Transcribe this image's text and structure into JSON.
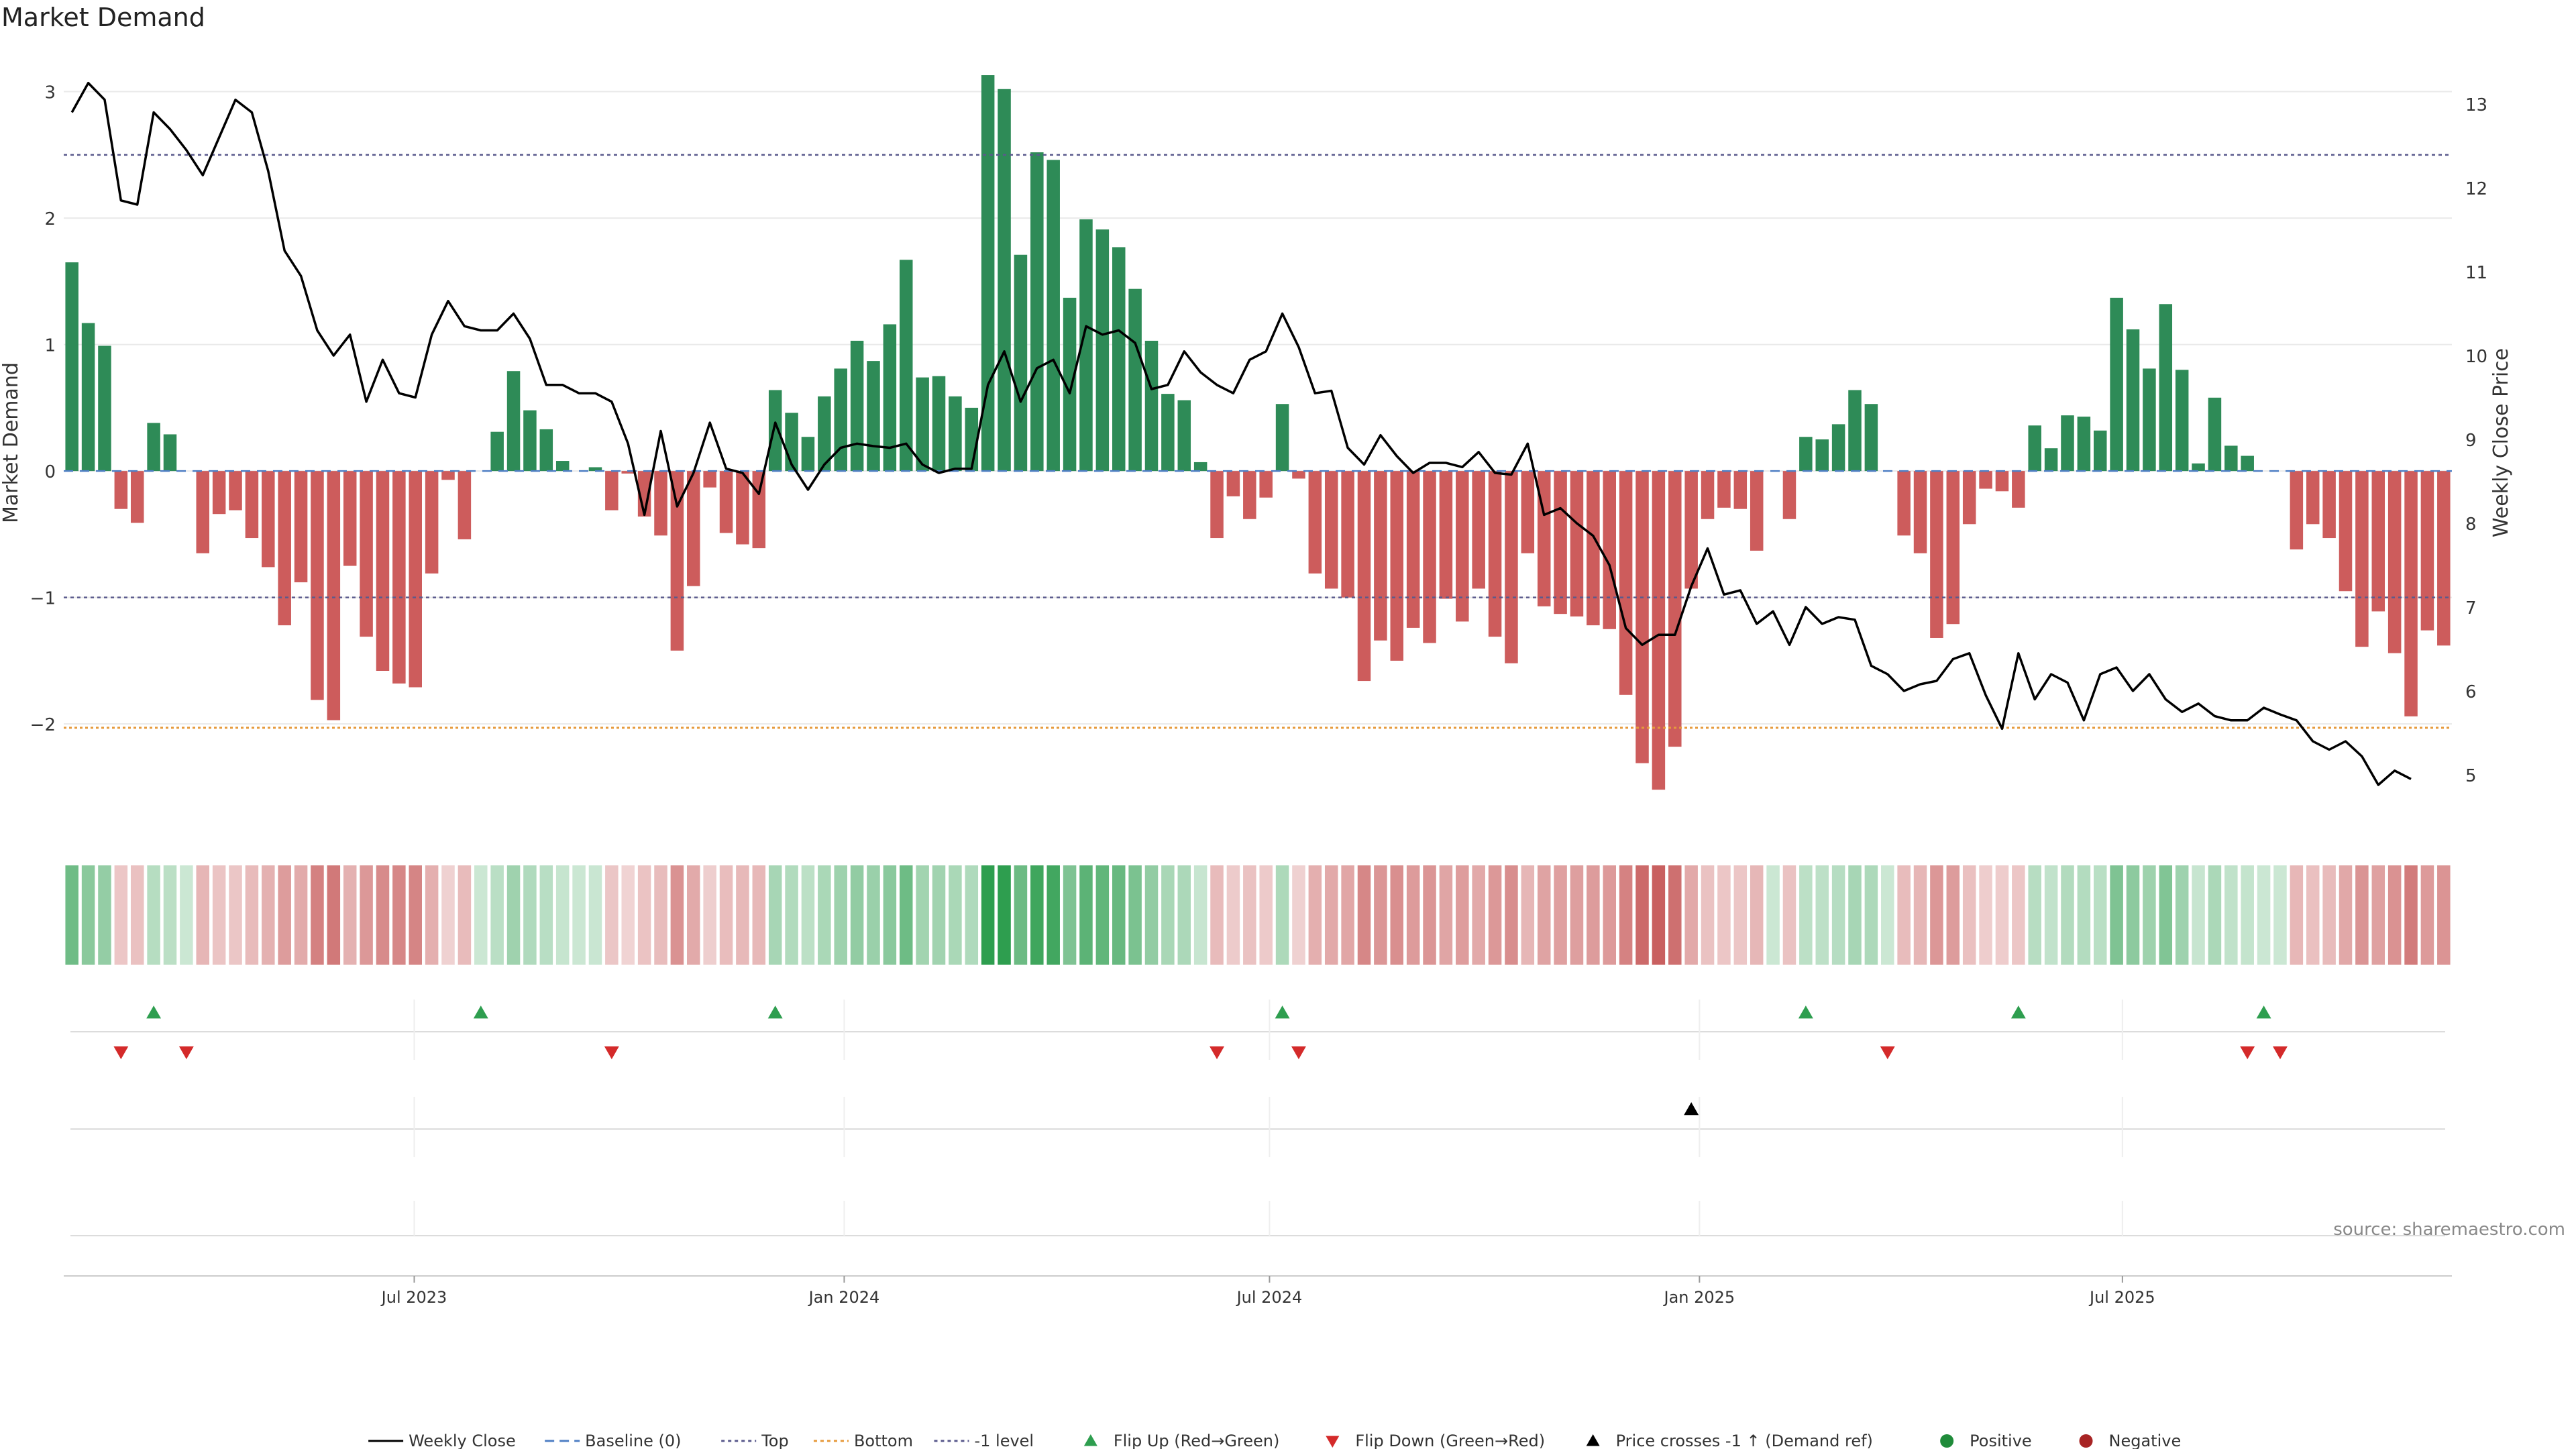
{
  "title": "Market Demand",
  "source": "source: sharemaestro.com",
  "colors": {
    "positive": "#2e8b57",
    "negative": "#cd5c5c",
    "price": "#000000",
    "top_line": "#5a5a8c",
    "bottom_line": "#e69a3c",
    "minus1_line": "#5a5a8c",
    "flip_up": "#2e9e4f",
    "flip_down": "#d42a2a",
    "cross": "#000000"
  },
  "chart_data": {
    "type": "bar",
    "title": "Market Demand",
    "ylabel": "Market Demand",
    "y2label": "Weekly Close Price",
    "ylim": [
      -2.8,
      3.3
    ],
    "y2lim": [
      4.4,
      13.6
    ],
    "yticks": [
      "−2",
      "−1",
      "0",
      "1",
      "2",
      "3"
    ],
    "y2ticks": [
      "5",
      "6",
      "7",
      "8",
      "9",
      "10",
      "11",
      "12",
      "13"
    ],
    "x_start": "2023-02-01",
    "week_days": 7,
    "xticks": [
      {
        "label": "Jul 2023",
        "date": "2023-07-01"
      },
      {
        "label": "Jan 2024",
        "date": "2024-01-01"
      },
      {
        "label": "Jul 2024",
        "date": "2024-07-01"
      },
      {
        "label": "Jan 2025",
        "date": "2025-01-01"
      },
      {
        "label": "Jul 2025",
        "date": "2025-07-01"
      }
    ],
    "levels": {
      "top": 2.5,
      "bottom": -2.03,
      "minus1": -1.0,
      "baseline": 0
    },
    "demand": [
      1.65,
      1.17,
      0.99,
      -0.3,
      -0.41,
      0.38,
      0.29,
      0.0,
      -0.65,
      -0.34,
      -0.31,
      -0.53,
      -0.76,
      -1.22,
      -0.88,
      -1.81,
      -1.97,
      -0.75,
      -1.31,
      -1.58,
      -1.68,
      -1.71,
      -0.81,
      -0.07,
      -0.54,
      0.0,
      0.31,
      0.79,
      0.48,
      0.33,
      0.08,
      0.0,
      0.03,
      -0.31,
      -0.02,
      -0.36,
      -0.51,
      -1.42,
      -0.91,
      -0.13,
      -0.49,
      -0.58,
      -0.61,
      0.64,
      0.46,
      0.27,
      0.59,
      0.81,
      1.03,
      0.87,
      1.16,
      1.67,
      0.74,
      0.75,
      0.59,
      0.5,
      3.13,
      3.02,
      1.71,
      2.52,
      2.46,
      1.37,
      1.99,
      1.91,
      1.77,
      1.44,
      1.03,
      0.61,
      0.56,
      0.07,
      -0.53,
      -0.2,
      -0.38,
      -0.21,
      0.53,
      -0.06,
      -0.81,
      -0.93,
      -1.0,
      -1.66,
      -1.34,
      -1.5,
      -1.24,
      -1.36,
      -1.01,
      -1.19,
      -0.93,
      -1.31,
      -1.52,
      -0.65,
      -1.07,
      -1.13,
      -1.15,
      -1.22,
      -1.25,
      -1.77,
      -2.31,
      -2.52,
      -2.18,
      -0.93,
      -0.38,
      -0.29,
      -0.3,
      -0.63,
      0.0,
      -0.38,
      0.27,
      0.25,
      0.37,
      0.64,
      0.53,
      0.0,
      -0.51,
      -0.65,
      -1.32,
      -1.21,
      -0.42,
      -0.14,
      -0.16,
      -0.29,
      0.36,
      0.18,
      0.44,
      0.43,
      0.32,
      1.37,
      1.12,
      0.81,
      1.32,
      0.8,
      0.06,
      0.58,
      0.2,
      0.12,
      0.0,
      0.0,
      -0.62,
      -0.42,
      -0.53,
      -0.95,
      -1.39,
      -1.11,
      -1.44,
      -1.94,
      -1.26,
      -1.38
    ],
    "price": [
      12.9,
      13.25,
      13.05,
      11.85,
      11.8,
      12.9,
      12.7,
      12.45,
      12.15,
      12.6,
      13.05,
      12.9,
      12.2,
      11.25,
      10.95,
      10.3,
      10.0,
      10.25,
      9.45,
      9.95,
      9.55,
      9.5,
      10.25,
      10.65,
      10.35,
      10.3,
      10.3,
      10.5,
      10.2,
      9.65,
      9.65,
      9.55,
      9.55,
      9.45,
      8.95,
      8.1,
      9.1,
      8.2,
      8.6,
      9.2,
      8.65,
      8.6,
      8.35,
      9.2,
      8.7,
      8.4,
      8.7,
      8.9,
      8.95,
      8.92,
      8.9,
      8.95,
      8.7,
      8.6,
      8.65,
      8.65,
      9.65,
      10.05,
      9.45,
      9.85,
      9.95,
      9.55,
      10.35,
      10.25,
      10.3,
      10.15,
      9.6,
      9.65,
      10.05,
      9.8,
      9.65,
      9.55,
      9.95,
      10.05,
      10.5,
      10.1,
      9.55,
      9.58,
      8.9,
      8.7,
      9.05,
      8.8,
      8.6,
      8.72,
      8.72,
      8.67,
      8.85,
      8.6,
      8.58,
      8.95,
      8.1,
      8.18,
      8.0,
      7.85,
      7.5,
      6.75,
      6.55,
      6.67,
      6.67,
      7.25,
      7.7,
      7.15,
      7.2,
      6.8,
      6.95,
      6.55,
      7.0,
      6.8,
      6.88,
      6.85,
      6.3,
      6.2,
      6.0,
      6.08,
      6.12,
      6.38,
      6.45,
      5.95,
      5.55,
      6.45,
      5.9,
      6.2,
      6.1,
      5.65,
      6.2,
      6.28,
      6.0,
      6.2,
      5.9,
      5.75,
      5.85,
      5.7,
      5.65,
      5.65,
      5.8,
      5.72,
      5.65,
      5.4,
      5.3,
      5.4,
      5.22,
      4.88,
      5.05,
      4.95
    ],
    "flip_up": [
      5,
      25,
      43,
      74,
      106,
      119,
      134
    ],
    "flip_down": [
      3,
      7,
      33,
      70,
      75,
      111,
      133,
      135
    ],
    "price_cross": [
      99
    ],
    "legend_position": "bottom-center",
    "legend": [
      {
        "label": "Weekly Close",
        "kind": "solid",
        "color": "#000000"
      },
      {
        "label": "Baseline (0)",
        "kind": "dashed",
        "color": "#4f7fc4"
      },
      {
        "label": "Top",
        "kind": "dotted",
        "color": "#5a5a8c"
      },
      {
        "label": "Bottom",
        "kind": "dotted",
        "color": "#e69a3c"
      },
      {
        "label": "-1 level",
        "kind": "dotted",
        "color": "#5a5a8c"
      },
      {
        "label": "Flip Up (Red→Green)",
        "kind": "tri-up",
        "color": "#2e9e4f"
      },
      {
        "label": "Flip Down (Green→Red)",
        "kind": "tri-down",
        "color": "#d42a2a"
      },
      {
        "label": "Price crosses -1 ↑ (Demand ref)",
        "kind": "tri-up",
        "color": "#000000"
      },
      {
        "label": "Positive",
        "kind": "dot",
        "color": "#1f8b3a"
      },
      {
        "label": "Negative",
        "kind": "dot",
        "color": "#a82424"
      }
    ]
  }
}
